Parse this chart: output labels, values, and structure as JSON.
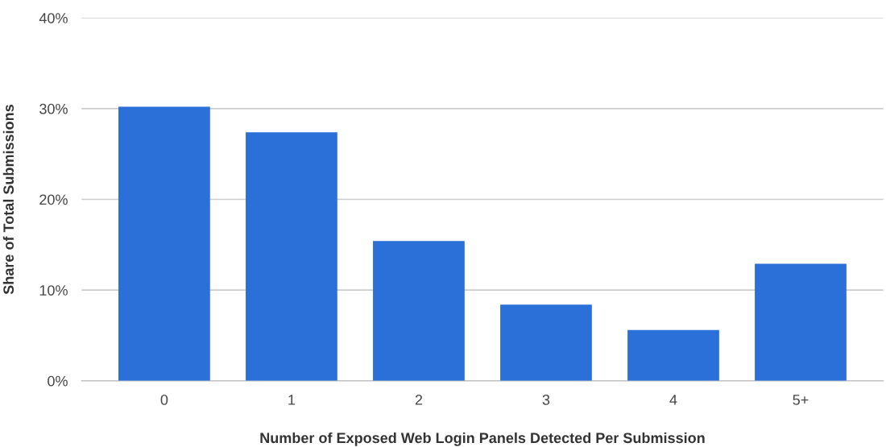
{
  "chart_data": {
    "type": "bar",
    "xlabel": "Number of Exposed Web Login Panels Detected Per Submission",
    "ylabel": "Share of Total Submissions",
    "categories": [
      "0",
      "1",
      "2",
      "3",
      "4",
      "5+"
    ],
    "values": [
      30.2,
      27.4,
      15.4,
      8.4,
      5.6,
      12.9
    ],
    "color": "#2b70d9",
    "ylim": [
      0,
      40
    ],
    "yticks": [
      {
        "value": 0,
        "label": "0%"
      },
      {
        "value": 10,
        "label": "10%"
      },
      {
        "value": 20,
        "label": "20%"
      },
      {
        "value": 30,
        "label": "30%"
      },
      {
        "value": 40,
        "label": "40%"
      }
    ],
    "grid": "y"
  }
}
